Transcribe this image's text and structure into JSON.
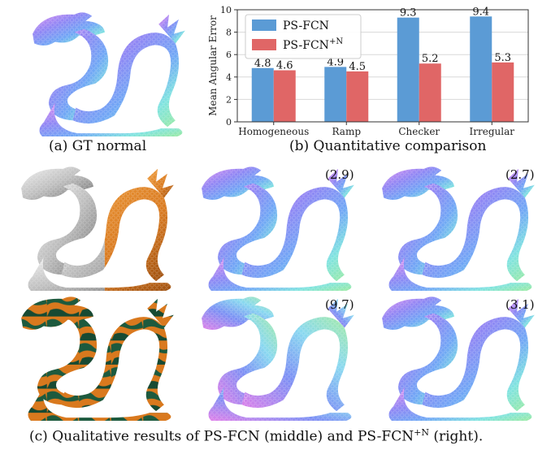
{
  "captions": {
    "a": "(a) GT normal",
    "b": "(b) Quantitative comparison",
    "c_pre": "(c) Qualitative results of PS-FCN (middle) and PS-FCN",
    "c_sup": "+N",
    "c_post": " (right)."
  },
  "scores": {
    "row1_middle": "(2.9)",
    "row1_right": "(2.7)",
    "row2_middle": "(9.7)",
    "row2_right": "(3.1)"
  },
  "colors": {
    "series_a": "#5b9bd5",
    "series_b": "#e06666",
    "normal_pink": "#e87ee8",
    "normal_blue": "#6f8ef5",
    "normal_cyan": "#7fe6e6",
    "normal_green": "#8ee88e",
    "orange_material": "#d9791e",
    "green_material": "#1d5a3e",
    "gray_material": "#c8c8c8"
  },
  "chart_data": {
    "type": "bar",
    "categories": [
      "Homogeneous",
      "Ramp",
      "Checker",
      "Irregular"
    ],
    "series": [
      {
        "name": "PS-FCN",
        "name_sup": "",
        "values": [
          4.8,
          4.9,
          9.3,
          9.4
        ]
      },
      {
        "name": "PS-FCN",
        "name_sup": "+N",
        "values": [
          4.6,
          4.5,
          5.2,
          5.3
        ]
      }
    ],
    "value_labels": [
      [
        "4.8",
        "4.9",
        "9.3",
        "9.4"
      ],
      [
        "4.6",
        "4.5",
        "5.2",
        "5.3"
      ]
    ],
    "ylabel": "Mean Angular Error",
    "ylim": [
      0,
      10
    ],
    "yticks": [
      "0",
      "2",
      "4",
      "6",
      "8",
      "10"
    ],
    "grid": true,
    "legend": "top-left"
  }
}
